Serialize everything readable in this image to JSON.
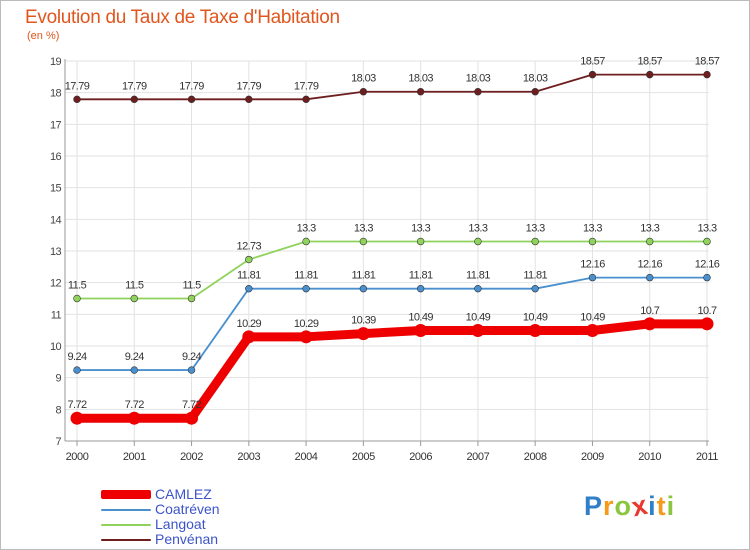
{
  "chart_data": {
    "type": "line",
    "title": "Evolution du Taux de Taxe d'Habitation",
    "subtitle": "(en %)",
    "x": [
      "2000",
      "2001",
      "2002",
      "2003",
      "2004",
      "2005",
      "2006",
      "2007",
      "2008",
      "2009",
      "2010",
      "2011"
    ],
    "ylim": [
      7,
      19
    ],
    "yticks": [
      7,
      8,
      9,
      10,
      11,
      12,
      13,
      14,
      15,
      16,
      17,
      18,
      19
    ],
    "grid": true,
    "legend_position": "bottom-left",
    "series": [
      {
        "name": "Penvénan",
        "color": "#6e1e1e",
        "emphasis": false,
        "values": [
          17.79,
          17.79,
          17.79,
          17.79,
          17.79,
          18.03,
          18.03,
          18.03,
          18.03,
          18.57,
          18.57,
          18.57
        ]
      },
      {
        "name": "Langoat",
        "color": "#8fd35c",
        "emphasis": false,
        "values": [
          11.5,
          11.5,
          11.5,
          12.73,
          13.3,
          13.3,
          13.3,
          13.3,
          13.3,
          13.3,
          13.3,
          13.3
        ]
      },
      {
        "name": "Coatréven",
        "color": "#4a90cf",
        "emphasis": false,
        "values": [
          9.24,
          9.24,
          9.24,
          11.81,
          11.81,
          11.81,
          11.81,
          11.81,
          11.81,
          12.16,
          12.16,
          12.16
        ]
      },
      {
        "name": "CAMLEZ",
        "color": "#ee0000",
        "emphasis": true,
        "values": [
          7.72,
          7.72,
          7.72,
          10.29,
          10.29,
          10.39,
          10.49,
          10.49,
          10.49,
          10.49,
          10.7,
          10.7
        ]
      }
    ],
    "legend_order": [
      "CAMLEZ",
      "Coatréven",
      "Langoat",
      "Penvénan"
    ]
  },
  "brand": {
    "letters": [
      "P",
      "r",
      "o",
      "x",
      "i",
      "t",
      "i"
    ],
    "colors": [
      "#2f7fc9",
      "#f59a1b",
      "#8cc63f",
      "#e8392c",
      "#2f7fc9",
      "#f59a1b",
      "#8cc63f"
    ]
  }
}
